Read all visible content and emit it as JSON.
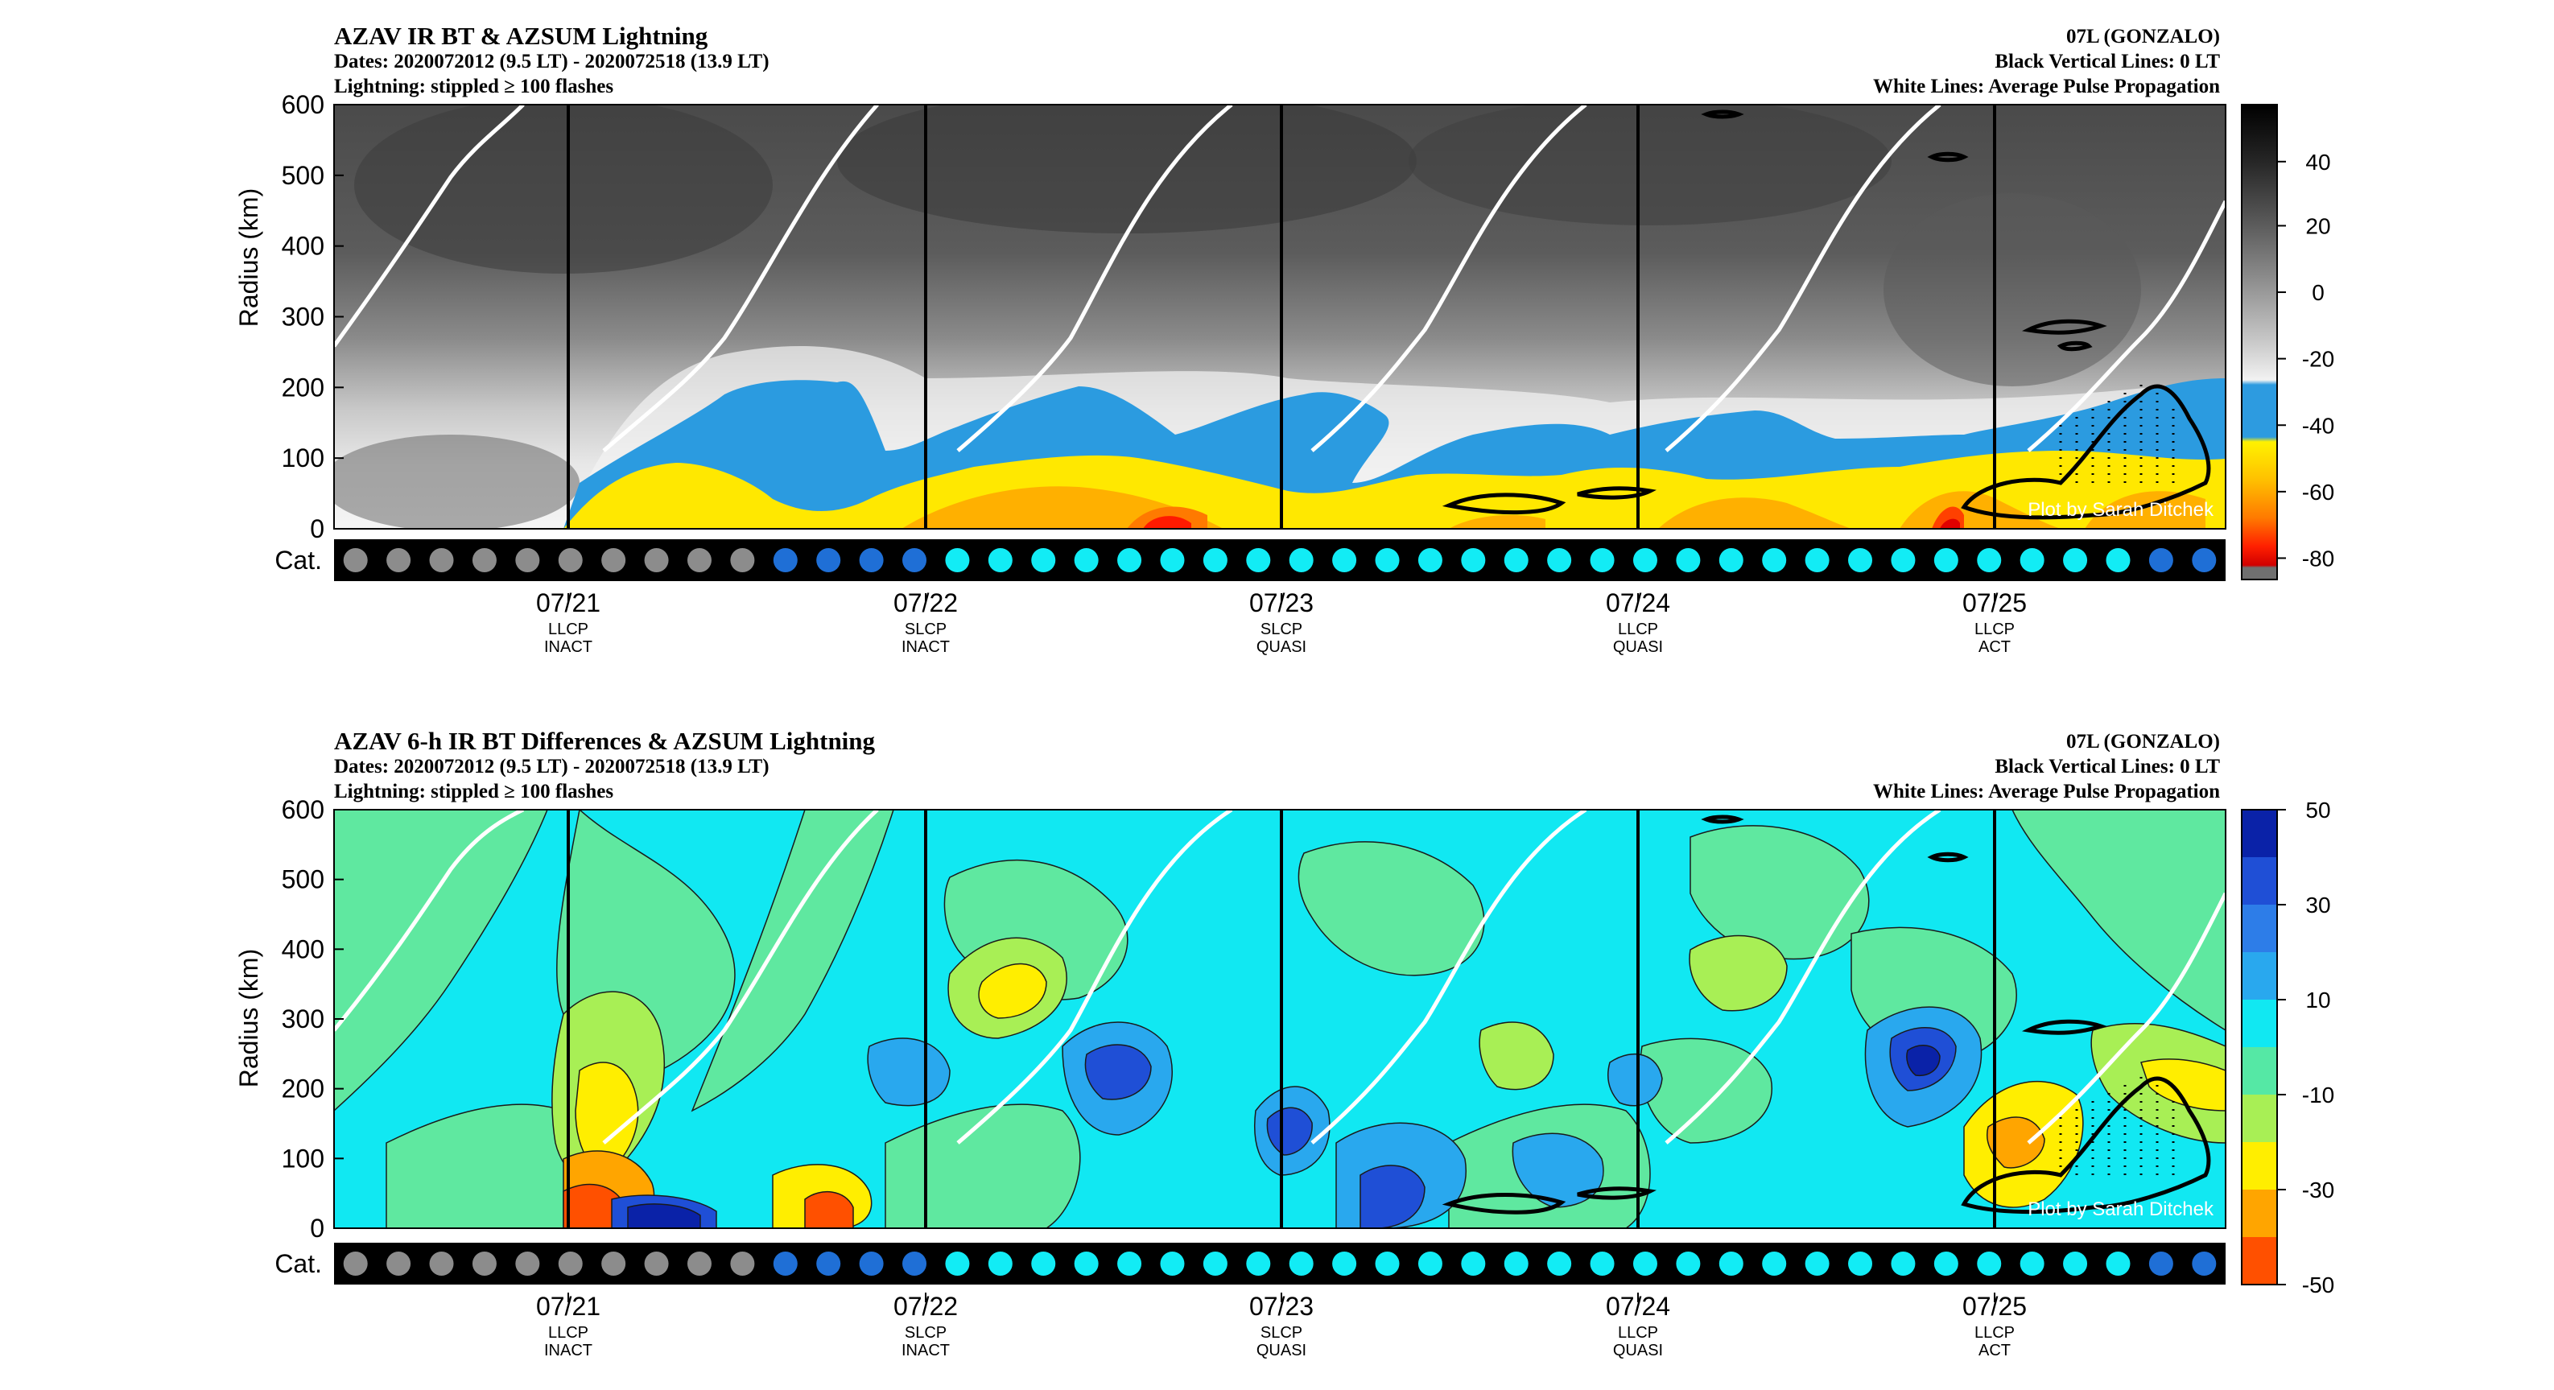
{
  "chart_data": [
    {
      "type": "heatmap",
      "title": "AZAV IR BT & AZSUM Lightning",
      "subtitle_lines": [
        "Dates: 2020072012 (9.5 LT) - 2020072518 (13.9 LT)",
        "Lightning: stippled ≥ 100 flashes"
      ],
      "right_lines": [
        "07L (GONZALO)",
        "Black Vertical Lines: 0 LT",
        "White Lines: Average Pulse Propagation"
      ],
      "ylabel": "Radius (km)",
      "ylim": [
        0,
        600
      ],
      "yticks": [
        "0",
        "100",
        "200",
        "300",
        "400",
        "500",
        "600"
      ],
      "xticks": [
        {
          "date": "07/21",
          "cat1": "LLCP",
          "cat2": "INACT"
        },
        {
          "date": "07/22",
          "cat1": "SLCP",
          "cat2": "INACT"
        },
        {
          "date": "07/23",
          "cat1": "SLCP",
          "cat2": "QUASI"
        },
        {
          "date": "07/24",
          "cat1": "LLCP",
          "cat2": "QUASI"
        },
        {
          "date": "07/25",
          "cat1": "LLCP",
          "cat2": "ACT"
        }
      ],
      "colorbar": {
        "ticks": [
          "40",
          "20",
          "0",
          "-20",
          "-40",
          "-60",
          "-80"
        ],
        "range": [
          -80,
          55
        ]
      },
      "cat_label": "Cat.",
      "credit": "Plot by Sarah Ditchek",
      "grid": false
    },
    {
      "type": "heatmap",
      "title": "AZAV 6-h IR BT Differences & AZSUM Lightning",
      "subtitle_lines": [
        "Dates: 2020072012 (9.5 LT) - 2020072518 (13.9 LT)",
        "Lightning: stippled ≥ 100 flashes"
      ],
      "right_lines": [
        "07L (GONZALO)",
        "Black Vertical Lines: 0 LT",
        "White Lines: Average Pulse Propagation"
      ],
      "ylabel": "Radius (km)",
      "ylim": [
        0,
        600
      ],
      "yticks": [
        "0",
        "100",
        "200",
        "300",
        "400",
        "500",
        "600"
      ],
      "xticks": [
        {
          "date": "07/21",
          "cat1": "LLCP",
          "cat2": "INACT"
        },
        {
          "date": "07/22",
          "cat1": "SLCP",
          "cat2": "INACT"
        },
        {
          "date": "07/23",
          "cat1": "SLCP",
          "cat2": "QUASI"
        },
        {
          "date": "07/24",
          "cat1": "LLCP",
          "cat2": "QUASI"
        },
        {
          "date": "07/25",
          "cat1": "LLCP",
          "cat2": "ACT"
        }
      ],
      "colorbar": {
        "ticks": [
          "50",
          "30",
          "10",
          "-10",
          "-30",
          "-50"
        ],
        "range": [
          -50,
          50
        ]
      },
      "cat_label": "Cat.",
      "credit": "Plot by Sarah Ditchek",
      "grid": false
    }
  ],
  "categories_sequence": [
    "gray",
    "gray",
    "gray",
    "gray",
    "gray",
    "gray",
    "gray",
    "gray",
    "gray",
    "gray",
    "blue",
    "blue",
    "blue",
    "blue",
    "cyan",
    "cyan",
    "cyan",
    "cyan",
    "cyan",
    "cyan",
    "cyan",
    "cyan",
    "cyan",
    "cyan",
    "cyan",
    "cyan",
    "cyan",
    "cyan",
    "cyan",
    "cyan",
    "cyan",
    "cyan",
    "cyan",
    "cyan",
    "cyan",
    "cyan",
    "cyan",
    "cyan",
    "cyan",
    "cyan",
    "cyan",
    "cyan",
    "blue",
    "blue"
  ],
  "colors": {
    "cat_gray": "#8c8c8c",
    "cat_blue": "#1f6fd6",
    "cat_cyan": "#12ecf5",
    "cat_bar": "#000000"
  }
}
